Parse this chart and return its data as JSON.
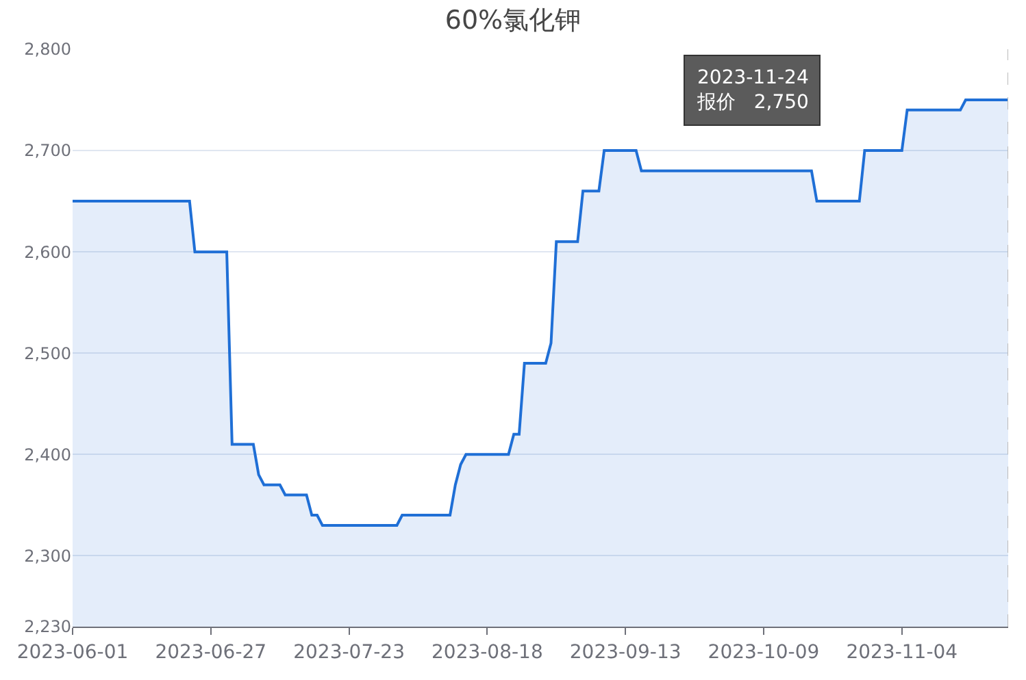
{
  "chart_data": {
    "type": "area",
    "title": "60%氯化钾",
    "x": [
      "2023-06-01",
      "2023-06-23",
      "2023-06-24",
      "2023-06-30",
      "2023-07-01",
      "2023-07-05",
      "2023-07-06",
      "2023-07-07",
      "2023-07-10",
      "2023-07-11",
      "2023-07-15",
      "2023-07-16",
      "2023-07-17",
      "2023-07-18",
      "2023-08-01",
      "2023-08-02",
      "2023-08-11",
      "2023-08-12",
      "2023-08-13",
      "2023-08-14",
      "2023-08-22",
      "2023-08-23",
      "2023-08-24",
      "2023-08-25",
      "2023-08-29",
      "2023-08-30",
      "2023-08-31",
      "2023-09-04",
      "2023-09-05",
      "2023-09-08",
      "2023-09-09",
      "2023-09-15",
      "2023-09-16",
      "2023-10-18",
      "2023-10-19",
      "2023-10-27",
      "2023-10-28",
      "2023-11-04",
      "2023-11-05",
      "2023-11-15",
      "2023-11-16",
      "2023-11-24"
    ],
    "series": [
      {
        "color": "#1f6fd6",
        "values": [
          2650,
          2650,
          2600,
          2600,
          2410,
          2410,
          2380,
          2370,
          2370,
          2360,
          2360,
          2340,
          2340,
          2330,
          2330,
          2340,
          2340,
          2370,
          2390,
          2400,
          2400,
          2420,
          2420,
          2490,
          2490,
          2510,
          2610,
          2610,
          2660,
          2660,
          2700,
          2700,
          2680,
          2680,
          2650,
          2650,
          2700,
          2700,
          2740,
          2740,
          2750,
          2750
        ]
      }
    ],
    "xlim": [
      "2023-06-01",
      "2023-11-24"
    ],
    "xticks": [
      "2023-06-01",
      "2023-06-27",
      "2023-07-23",
      "2023-08-18",
      "2023-09-13",
      "2023-10-09",
      "2023-11-04"
    ],
    "ylim": [
      2230,
      2800
    ],
    "yticks": [
      {
        "value": 2230,
        "label": "2,230"
      },
      {
        "value": 2300,
        "label": "2,300"
      },
      {
        "value": 2400,
        "label": "2,400"
      },
      {
        "value": 2500,
        "label": "2,500"
      },
      {
        "value": 2600,
        "label": "2,600"
      },
      {
        "value": 2700,
        "label": "2,700"
      },
      {
        "value": 2800,
        "label": "2,800"
      }
    ],
    "grid": "y",
    "ref_lines": [
      {
        "axis": "x",
        "value": "2023-11-24",
        "label": null,
        "color": "#bbbbbb",
        "line_style": "dashed"
      }
    ],
    "annotations": [
      "2023-11-24\n报价   2,750"
    ]
  }
}
